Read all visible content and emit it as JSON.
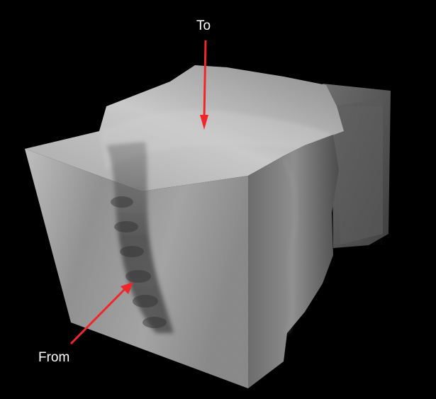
{
  "annotations": {
    "to_label": "To",
    "from_label": "From",
    "arrow_color": "#f0262a"
  },
  "scene": {
    "background": "#000000",
    "subject": "volume-rendered-ct-block"
  }
}
